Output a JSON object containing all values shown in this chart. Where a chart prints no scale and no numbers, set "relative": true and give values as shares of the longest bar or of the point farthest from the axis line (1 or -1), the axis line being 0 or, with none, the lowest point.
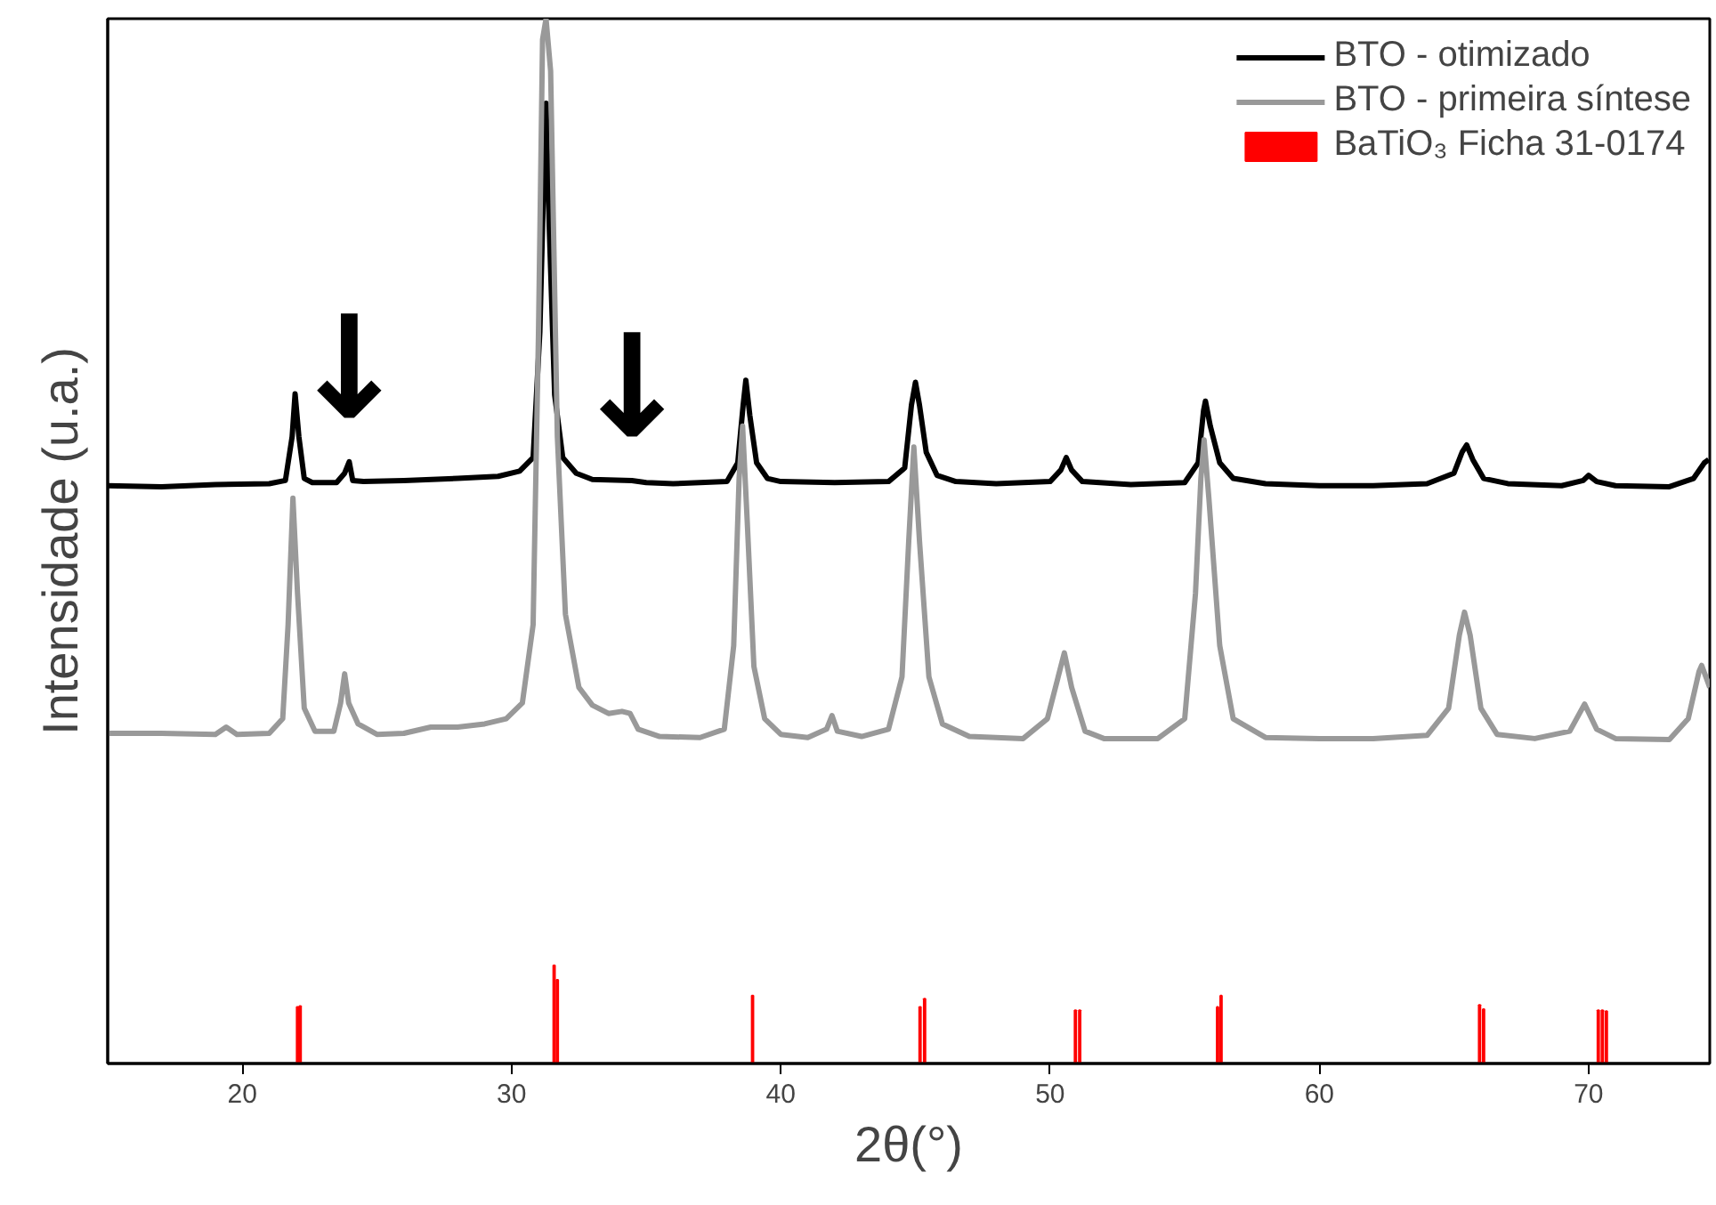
{
  "chart_data": {
    "type": "line",
    "xlabel": "2θ(°)",
    "ylabel": "Intensidade (u.a.)",
    "relative": true,
    "xlim": [
      15,
      74.5
    ],
    "xticks": [
      20,
      30,
      40,
      50,
      60,
      70
    ],
    "tick_labels": "x",
    "grid": false,
    "legend": "top right",
    "line_style": "solid",
    "marker": "none",
    "annotations": [
      {
        "text": "↓",
        "x": 23.97,
        "y": 0.576
      },
      {
        "text": "↓",
        "x": 34.47,
        "y": 0.558
      }
    ],
    "series": [
      {
        "name": "BTO - otimizado",
        "color": "#000000",
        "x": [
          15,
          17,
          19,
          21,
          21.6,
          21.85,
          21.96,
          22.1,
          22.3,
          22.6,
          23.5,
          23.8,
          23.97,
          24.1,
          24.5,
          26,
          28,
          29.5,
          30.3,
          30.8,
          31.05,
          31.2,
          31.28,
          31.4,
          31.6,
          31.9,
          32.4,
          33,
          34.47,
          35,
          36,
          37,
          38,
          38.4,
          38.6,
          38.7,
          38.85,
          39.1,
          39.5,
          40,
          42,
          44,
          44.6,
          44.85,
          45.0,
          45.15,
          45.4,
          45.8,
          46.5,
          48,
          50,
          50.4,
          50.6,
          50.8,
          51.2,
          53,
          55,
          55.5,
          55.7,
          55.77,
          55.95,
          56.3,
          56.8,
          58,
          60,
          62,
          64,
          65.0,
          65.3,
          65.47,
          65.7,
          66.1,
          67,
          69,
          69.8,
          70.0,
          70.3,
          71,
          73,
          73.9,
          74.3,
          74.46
        ],
        "values": [
          0.553,
          0.552,
          0.554,
          0.555,
          0.558,
          0.6,
          0.641,
          0.6,
          0.56,
          0.556,
          0.556,
          0.565,
          0.576,
          0.558,
          0.557,
          0.558,
          0.56,
          0.562,
          0.567,
          0.58,
          0.7,
          0.85,
          0.919,
          0.8,
          0.64,
          0.58,
          0.565,
          0.559,
          0.558,
          0.556,
          0.555,
          0.556,
          0.557,
          0.575,
          0.63,
          0.654,
          0.62,
          0.575,
          0.56,
          0.557,
          0.556,
          0.557,
          0.57,
          0.63,
          0.652,
          0.63,
          0.585,
          0.563,
          0.557,
          0.555,
          0.557,
          0.568,
          0.58,
          0.568,
          0.557,
          0.554,
          0.556,
          0.575,
          0.625,
          0.634,
          0.61,
          0.575,
          0.56,
          0.555,
          0.553,
          0.553,
          0.555,
          0.565,
          0.585,
          0.592,
          0.578,
          0.56,
          0.555,
          0.553,
          0.558,
          0.563,
          0.557,
          0.553,
          0.552,
          0.56,
          0.575,
          0.578
        ]
      },
      {
        "name": "BTO - primeira síntese",
        "color": "#999999",
        "x": [
          15,
          17,
          19,
          19.4,
          19.8,
          21,
          21.5,
          21.7,
          21.88,
          22.05,
          22.3,
          22.7,
          23.4,
          23.65,
          23.8,
          23.95,
          24.3,
          25,
          26,
          27,
          28,
          29,
          29.8,
          30.4,
          30.8,
          31.0,
          31.15,
          31.28,
          31.45,
          31.7,
          32.0,
          32.5,
          33,
          33.6,
          34.1,
          34.4,
          34.7,
          35.5,
          37,
          37.9,
          38.25,
          38.45,
          38.58,
          38.75,
          39.0,
          39.4,
          40,
          41,
          41.7,
          41.9,
          42.1,
          43,
          44,
          44.5,
          44.75,
          44.94,
          45.15,
          45.5,
          46,
          47,
          49,
          49.9,
          50.3,
          50.53,
          50.8,
          51.3,
          52,
          54,
          55,
          55.4,
          55.6,
          55.72,
          55.9,
          56.3,
          56.8,
          58,
          60,
          62,
          64,
          64.8,
          65.2,
          65.39,
          65.6,
          66.0,
          66.6,
          68,
          69.3,
          69.85,
          70.3,
          71,
          73,
          73.7,
          74.1,
          74.2,
          74.5
        ],
        "values": [
          0.316,
          0.316,
          0.315,
          0.322,
          0.315,
          0.316,
          0.33,
          0.42,
          0.541,
          0.45,
          0.34,
          0.318,
          0.318,
          0.345,
          0.373,
          0.345,
          0.325,
          0.315,
          0.316,
          0.322,
          0.322,
          0.325,
          0.33,
          0.345,
          0.42,
          0.7,
          0.98,
          1.0,
          0.95,
          0.6,
          0.43,
          0.36,
          0.343,
          0.335,
          0.337,
          0.335,
          0.32,
          0.313,
          0.312,
          0.32,
          0.4,
          0.56,
          0.61,
          0.52,
          0.38,
          0.33,
          0.315,
          0.312,
          0.32,
          0.333,
          0.318,
          0.313,
          0.32,
          0.37,
          0.5,
          0.59,
          0.5,
          0.37,
          0.325,
          0.313,
          0.311,
          0.33,
          0.37,
          0.393,
          0.36,
          0.318,
          0.311,
          0.311,
          0.33,
          0.45,
          0.56,
          0.597,
          0.54,
          0.4,
          0.33,
          0.312,
          0.311,
          0.311,
          0.314,
          0.34,
          0.41,
          0.432,
          0.41,
          0.34,
          0.315,
          0.311,
          0.318,
          0.344,
          0.32,
          0.311,
          0.31,
          0.33,
          0.375,
          0.381,
          0.36
        ]
      },
      {
        "name": "BaTiO₃ Ficha 31-0174",
        "color": "#ff0000",
        "type": "bar",
        "x": [
          22.05,
          22.15,
          31.58,
          31.7,
          38.95,
          45.17,
          45.34,
          50.94,
          51.1,
          56.22,
          56.35,
          65.95,
          66.1,
          70.36,
          70.51,
          70.66
        ],
        "values": [
          0.054,
          0.055,
          0.094,
          0.08,
          0.065,
          0.054,
          0.062,
          0.051,
          0.051,
          0.054,
          0.065,
          0.056,
          0.052,
          0.051,
          0.051,
          0.05
        ]
      }
    ]
  }
}
